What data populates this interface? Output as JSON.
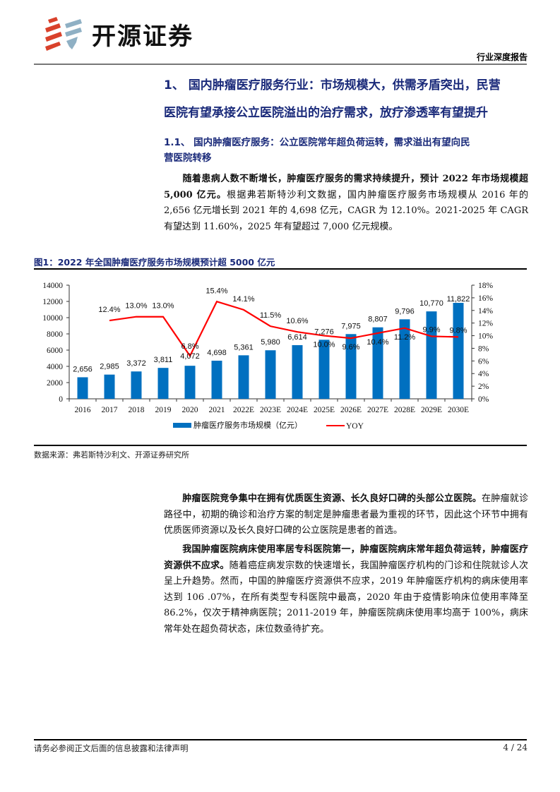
{
  "header": {
    "brand": "开源证券",
    "report_type": "行业深度报告"
  },
  "section": {
    "h1_line1": "1、 国内肿瘤医疗服务行业：市场规模大，供需矛盾突出，民营",
    "h1_line2": "医院有望承接公立医院溢出的治疗需求，放疗渗透率有望提升",
    "h2_line1": "1.1、 国内肿瘤医疗服务：公立医院常年超负荷运转，需求溢出有望向民",
    "h2_line2": "营医院转移"
  },
  "paragraphs": [
    {
      "bold": "随着患病人数不断增长，肿瘤医疗服务的需求持续提升，预计 2022 年市场规模超 5,000 亿元。",
      "text": "根据弗若斯特沙利文数据，国内肿瘤医疗服务市场规模从 2016 年的 2,656 亿元增长到 2021 年的 4,698 亿元，CAGR 为 12.10%。2021-2025 年 CAGR 有望达到 11.60%，2025 年有望超过 7,000 亿元规模。"
    },
    {
      "bold": "肿瘤医院竞争集中在拥有优质医生资源、长久良好口碑的头部公立医院。",
      "text": "在肿瘤就诊路径中，初期的确诊和治疗方案的制定是肿瘤患者最为重视的环节，因此这个环节中拥有优质医师资源以及长久良好口碑的公立医院是患者的首选。"
    },
    {
      "bold": "我国肿瘤医院病床使用率居专科医院第一，肿瘤医院病床常年超负荷运转，肿瘤医疗资源供不应求。",
      "text": "随着癌症病发宗数的快速增长，我国肿瘤医疗机构的门诊和住院就诊人次呈上升趋势。然而，中国的肿瘤医疗资源供不应求，2019 年肿瘤医疗机构的病床使用率达到 106 .07%，在所有类型专科医院中最高，2020 年由于疫情影响床位使用率降至 86.2%，仅次于精神病医院；2011-2019 年，肿瘤医院病床使用率均高于 100%，病床常年处在超负荷状态，床位数亟待扩充。"
    }
  ],
  "figure": {
    "title": "图1：2022 年全国肿瘤医疗服务市场规模预计超 5000 亿元",
    "source": "数据来源：弗若斯特沙利文、开源证券研究所"
  },
  "chart_data": {
    "type": "bar",
    "title": "图1：2022 年全国肿瘤医疗服务市场规模预计超 5000 亿元",
    "categories": [
      "2016",
      "2017",
      "2018",
      "2019",
      "2020",
      "2021",
      "2022E",
      "2023E",
      "2024E",
      "2025E",
      "2026E",
      "2027E",
      "2028E",
      "2029E",
      "2030E"
    ],
    "series": [
      {
        "name": "肿瘤医疗服务市场规模（亿元）",
        "type": "bar",
        "axis": "left",
        "color": "#0070c0",
        "values": [
          2656,
          2985,
          3372,
          3811,
          4072,
          4698,
          5361,
          5980,
          6614,
          7276,
          7975,
          8807,
          9796,
          10770,
          11822
        ],
        "labels": [
          "2,656",
          "2,985",
          "3,372",
          "3,811",
          "4,072",
          "4,698",
          "5,361",
          "5,980",
          "6,614",
          "7,276",
          "7,975",
          "8,807",
          "9,796",
          "10,770",
          "11,822"
        ]
      },
      {
        "name": "YOY",
        "type": "line",
        "axis": "right",
        "color": "#ff0000",
        "values": [
          null,
          12.4,
          13.0,
          13.0,
          6.8,
          15.4,
          14.1,
          11.5,
          10.6,
          10.0,
          9.6,
          10.4,
          11.2,
          9.9,
          9.8
        ],
        "labels": [
          "",
          "12.4%",
          "13.0%",
          "13.0%",
          "6.8%",
          "15.4%",
          "14.1%",
          "11.5%",
          "10.6%",
          "10.0%",
          "9.6%",
          "10.4%",
          "11.2%",
          "9.9%",
          "9.8%"
        ]
      }
    ],
    "y_left": {
      "min": 0,
      "max": 14000,
      "ticks": [
        "0",
        "2000",
        "4000",
        "6000",
        "8000",
        "10000",
        "12000",
        "14000"
      ]
    },
    "y_right": {
      "min": 0,
      "max": 18,
      "ticks": [
        "0%",
        "2%",
        "4%",
        "6%",
        "8%",
        "10%",
        "12%",
        "14%",
        "16%",
        "18%"
      ]
    },
    "legend": [
      "肿瘤医疗服务市场规模（亿元）",
      "YOY"
    ],
    "legend_position": "bottom",
    "grid": false
  },
  "footer": {
    "disclaimer": "请务必参阅正文后面的信息披露和法律声明",
    "page": "4 / 24"
  }
}
